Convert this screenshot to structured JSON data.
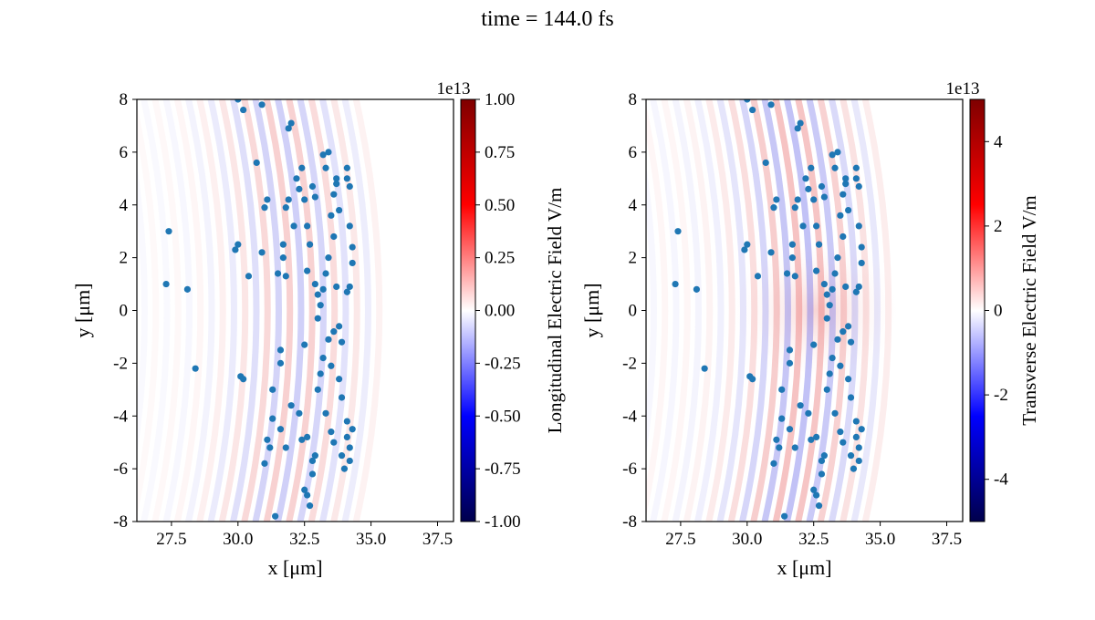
{
  "title": "time = 144.0 fs",
  "chart_data": [
    {
      "type": "scatter",
      "background": "heatmap",
      "xlabel": "x [$\\mu$m]",
      "ylabel": "y [$\\mu$m]",
      "xlim": [
        26.2,
        38.1
      ],
      "ylim": [
        -8,
        8
      ],
      "xticks": [
        27.5,
        30.0,
        32.5,
        35.0,
        37.5
      ],
      "xtick_labels": [
        "27.5",
        "30.0",
        "32.5",
        "35.0",
        "37.5"
      ],
      "yticks": [
        8,
        6,
        4,
        2,
        0,
        -2,
        -4,
        -6,
        -8
      ],
      "ytick_labels": [
        "8",
        "6",
        "4",
        "2",
        "0",
        "-2",
        "-4",
        "-6",
        "-8"
      ],
      "colorbar": {
        "label": "Longitudinal Electric Field V/m",
        "offset_label": "1e13",
        "range": [
          -1.0,
          1.0
        ],
        "ticks": [
          1.0,
          0.75,
          0.5,
          0.25,
          0.0,
          -0.25,
          -0.5,
          -0.75,
          -1.0
        ],
        "tick_labels": [
          "1.00",
          "0.75",
          "0.50",
          "0.25",
          "0.00",
          "-0.25",
          "-0.50",
          "-0.75",
          "-1.00"
        ],
        "colormap": "seismic"
      },
      "field": "longitudinal"
    },
    {
      "type": "scatter",
      "background": "heatmap",
      "xlabel": "x [$\\mu$m]",
      "ylabel": "y [$\\mu$m]",
      "xlim": [
        26.2,
        38.1
      ],
      "ylim": [
        -8,
        8
      ],
      "xticks": [
        27.5,
        30.0,
        32.5,
        35.0,
        37.5
      ],
      "xtick_labels": [
        "27.5",
        "30.0",
        "32.5",
        "35.0",
        "37.5"
      ],
      "yticks": [
        8,
        6,
        4,
        2,
        0,
        -2,
        -4,
        -6,
        -8
      ],
      "ytick_labels": [
        "8",
        "6",
        "4",
        "2",
        "0",
        "-2",
        "-4",
        "-6",
        "-8"
      ],
      "colorbar": {
        "label": "Transverse Electric Field V/m",
        "offset_label": "1e13",
        "range": [
          -5,
          5
        ],
        "ticks": [
          4,
          2,
          0,
          -2,
          -4
        ],
        "tick_labels": [
          "4",
          "2",
          "0",
          "-2",
          "-4"
        ],
        "colormap": "seismic"
      },
      "field": "transverse"
    }
  ],
  "particles": {
    "color": "#1f77b4",
    "points": [
      [
        27.3,
        1.0
      ],
      [
        27.4,
        3.0
      ],
      [
        28.1,
        0.8
      ],
      [
        28.4,
        -2.2
      ],
      [
        29.9,
        2.3
      ],
      [
        30.0,
        2.5
      ],
      [
        30.0,
        8.0
      ],
      [
        30.1,
        -2.5
      ],
      [
        30.2,
        -2.6
      ],
      [
        30.2,
        7.6
      ],
      [
        30.4,
        1.3
      ],
      [
        30.7,
        5.6
      ],
      [
        30.9,
        2.2
      ],
      [
        30.9,
        7.8
      ],
      [
        31.0,
        3.9
      ],
      [
        31.1,
        4.2
      ],
      [
        31.0,
        -5.8
      ],
      [
        31.1,
        -4.9
      ],
      [
        31.2,
        -5.2
      ],
      [
        31.3,
        -3.0
      ],
      [
        31.3,
        -4.1
      ],
      [
        31.4,
        -7.8
      ],
      [
        31.5,
        1.4
      ],
      [
        31.6,
        -1.5
      ],
      [
        31.6,
        -2.0
      ],
      [
        31.7,
        2.0
      ],
      [
        31.7,
        2.5
      ],
      [
        31.8,
        1.3
      ],
      [
        31.8,
        3.9
      ],
      [
        31.9,
        4.2
      ],
      [
        31.8,
        -5.2
      ],
      [
        31.9,
        6.9
      ],
      [
        32.0,
        7.1
      ],
      [
        32.0,
        -3.6
      ],
      [
        32.1,
        3.2
      ],
      [
        32.2,
        5.0
      ],
      [
        32.3,
        4.6
      ],
      [
        32.4,
        5.4
      ],
      [
        32.5,
        4.2
      ],
      [
        32.6,
        3.2
      ],
      [
        32.6,
        1.5
      ],
      [
        32.7,
        2.5
      ],
      [
        32.5,
        -1.3
      ],
      [
        32.6,
        -4.8
      ],
      [
        32.4,
        -4.9
      ],
      [
        32.5,
        -6.8
      ],
      [
        32.6,
        -7.0
      ],
      [
        32.7,
        -7.4
      ],
      [
        32.8,
        -6.2
      ],
      [
        32.9,
        -5.5
      ],
      [
        32.8,
        4.7
      ],
      [
        32.9,
        4.3
      ],
      [
        32.9,
        1.0
      ],
      [
        33.0,
        0.6
      ],
      [
        33.1,
        0.2
      ],
      [
        33.0,
        -0.3
      ],
      [
        33.2,
        0.8
      ],
      [
        33.2,
        -1.8
      ],
      [
        33.3,
        -3.9
      ],
      [
        33.2,
        5.9
      ],
      [
        33.3,
        5.4
      ],
      [
        33.4,
        6.0
      ],
      [
        33.5,
        3.6
      ],
      [
        33.6,
        4.4
      ],
      [
        33.7,
        4.8
      ],
      [
        33.6,
        2.8
      ],
      [
        33.7,
        0.9
      ],
      [
        33.8,
        -0.6
      ],
      [
        33.9,
        -1.2
      ],
      [
        33.8,
        -2.6
      ],
      [
        33.9,
        -3.3
      ],
      [
        33.9,
        -5.5
      ],
      [
        34.0,
        -6.0
      ],
      [
        34.1,
        5.4
      ],
      [
        34.1,
        5.0
      ],
      [
        34.2,
        4.7
      ],
      [
        34.2,
        3.2
      ],
      [
        34.3,
        2.4
      ],
      [
        34.2,
        0.9
      ],
      [
        34.1,
        0.7
      ],
      [
        34.3,
        1.8
      ],
      [
        34.1,
        -4.2
      ],
      [
        34.2,
        -5.2
      ],
      [
        34.1,
        -4.8
      ],
      [
        34.3,
        -4.5
      ],
      [
        34.2,
        -5.7
      ],
      [
        33.7,
        5.0
      ],
      [
        33.8,
        3.8
      ],
      [
        33.4,
        2.0
      ],
      [
        33.3,
        1.4
      ],
      [
        33.6,
        -0.8
      ],
      [
        33.5,
        -2.1
      ],
      [
        33.1,
        -2.4
      ],
      [
        33.0,
        -3.0
      ],
      [
        33.5,
        -4.6
      ],
      [
        33.6,
        -5.0
      ],
      [
        32.8,
        -5.7
      ],
      [
        33.4,
        -1.1
      ],
      [
        32.3,
        -3.9
      ],
      [
        31.6,
        -4.5
      ]
    ]
  }
}
